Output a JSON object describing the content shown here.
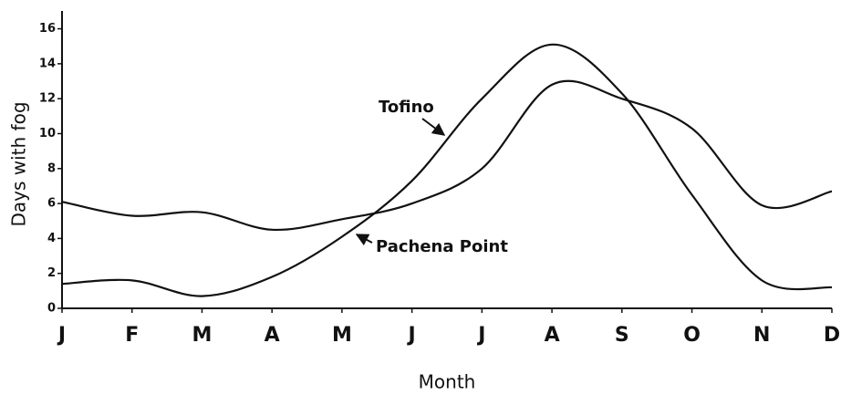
{
  "chart_data": {
    "type": "line",
    "x_label": "Month",
    "y_label": "Days with fog",
    "categories": [
      "J",
      "F",
      "M",
      "A",
      "M",
      "J",
      "J",
      "A",
      "S",
      "O",
      "N",
      "D"
    ],
    "series": [
      {
        "name": "Tofino",
        "color": "#111111",
        "values": [
          1.4,
          1.6,
          0.7,
          1.8,
          4.1,
          7.3,
          12.0,
          15.1,
          12.3,
          6.5,
          1.6,
          1.2
        ]
      },
      {
        "name": "Pachena Point",
        "color": "#111111",
        "values": [
          6.1,
          5.3,
          5.5,
          4.5,
          5.1,
          6.0,
          8.0,
          12.8,
          12.0,
          10.3,
          5.9,
          6.7
        ]
      }
    ],
    "ylim": [
      0,
      16.5
    ],
    "yticks": [
      0,
      2,
      4,
      6,
      8,
      10,
      12,
      14,
      16
    ],
    "grid": false
  }
}
